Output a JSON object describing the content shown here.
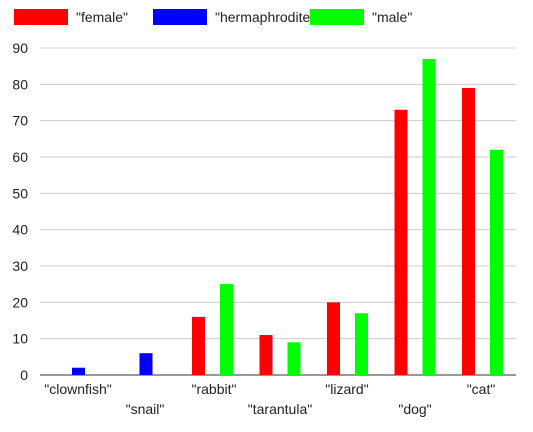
{
  "chart_data": {
    "type": "bar",
    "categories": [
      "\"clownfish\"",
      "\"snail\"",
      "\"rabbit\"",
      "\"tarantula\"",
      "\"lizard\"",
      "\"dog\"",
      "\"cat\""
    ],
    "series": [
      {
        "name": "\"female\"",
        "color": "#ff0000",
        "values": [
          0,
          0,
          16,
          11,
          20,
          73,
          79
        ]
      },
      {
        "name": "\"hermaphrodite\"",
        "color": "#0000ff",
        "values": [
          2,
          6,
          0,
          0,
          0,
          0,
          0
        ]
      },
      {
        "name": "\"male\"",
        "color": "#00ff00",
        "values": [
          0,
          0,
          25,
          9,
          17,
          87,
          62
        ]
      }
    ],
    "y_ticks": [
      "0",
      "10",
      "20",
      "30",
      "40",
      "50",
      "60",
      "70",
      "80",
      "90"
    ],
    "ylim": [
      0,
      90
    ],
    "grid": true,
    "legend_position": "top-left"
  }
}
